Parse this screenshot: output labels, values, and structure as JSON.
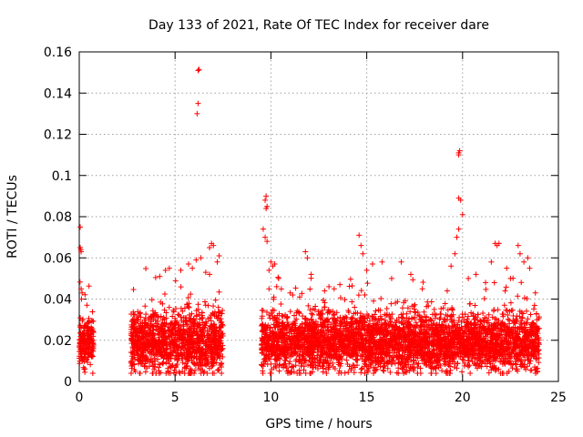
{
  "chart_data": {
    "type": "scatter",
    "title": "Day 133 of 2021, Rate Of TEC Index for receiver dare",
    "xlabel": "GPS time / hours",
    "ylabel": "ROTI / TECUs",
    "xlim": [
      0,
      25
    ],
    "ylim": [
      0,
      0.16
    ],
    "xticks": [
      "0",
      "5",
      "10",
      "15",
      "20",
      "25"
    ],
    "yticks": [
      "0",
      "0.02",
      "0.04",
      "0.06",
      "0.08",
      "0.1",
      "0.12",
      "0.14",
      "0.16"
    ],
    "marker": "+",
    "color": "#ff0000",
    "grid": true,
    "segments": [
      {
        "start": 0.0,
        "end": 0.75,
        "base": 0.018,
        "spread": 0.009
      },
      {
        "start": 2.7,
        "end": 7.5,
        "base": 0.019,
        "spread": 0.012
      },
      {
        "start": 9.5,
        "end": 24.0,
        "base": 0.019,
        "spread": 0.011
      }
    ],
    "outliers": [
      [
        0.05,
        0.075
      ],
      [
        0.05,
        0.065
      ],
      [
        0.08,
        0.064
      ],
      [
        0.1,
        0.063
      ],
      [
        0.1,
        0.045
      ],
      [
        0.15,
        0.043
      ],
      [
        0.12,
        0.04
      ],
      [
        0.4,
        0.037
      ],
      [
        4.2,
        0.051
      ],
      [
        4.5,
        0.054
      ],
      [
        4.7,
        0.055
      ],
      [
        5.3,
        0.054
      ],
      [
        5.7,
        0.057
      ],
      [
        5.9,
        0.055
      ],
      [
        6.1,
        0.059
      ],
      [
        6.35,
        0.06
      ],
      [
        6.6,
        0.053
      ],
      [
        6.8,
        0.052
      ],
      [
        6.2,
        0.151
      ],
      [
        6.25,
        0.1515
      ],
      [
        6.2,
        0.135
      ],
      [
        6.15,
        0.13
      ],
      [
        6.8,
        0.065
      ],
      [
        6.9,
        0.067
      ],
      [
        7.0,
        0.066
      ],
      [
        7.2,
        0.058
      ],
      [
        7.3,
        0.061
      ],
      [
        9.6,
        0.074
      ],
      [
        9.7,
        0.07
      ],
      [
        9.8,
        0.068
      ],
      [
        9.7,
        0.088
      ],
      [
        9.75,
        0.09
      ],
      [
        9.8,
        0.085
      ],
      [
        9.75,
        0.084
      ],
      [
        10.0,
        0.058
      ],
      [
        10.1,
        0.056
      ],
      [
        9.9,
        0.054
      ],
      [
        10.2,
        0.057
      ],
      [
        10.3,
        0.046
      ],
      [
        10.4,
        0.05
      ],
      [
        9.9,
        0.045
      ],
      [
        11.0,
        0.043
      ],
      [
        11.5,
        0.041
      ],
      [
        11.8,
        0.063
      ],
      [
        11.9,
        0.06
      ],
      [
        12.1,
        0.052
      ],
      [
        12.8,
        0.044
      ],
      [
        13.3,
        0.045
      ],
      [
        13.6,
        0.047
      ],
      [
        14.6,
        0.071
      ],
      [
        14.7,
        0.066
      ],
      [
        14.8,
        0.062
      ],
      [
        15.0,
        0.054
      ],
      [
        15.3,
        0.057
      ],
      [
        15.8,
        0.058
      ],
      [
        16.3,
        0.05
      ],
      [
        16.8,
        0.058
      ],
      [
        17.3,
        0.052
      ],
      [
        17.9,
        0.045
      ],
      [
        19.2,
        0.044
      ],
      [
        19.4,
        0.056
      ],
      [
        19.6,
        0.062
      ],
      [
        19.7,
        0.07
      ],
      [
        19.8,
        0.074
      ],
      [
        19.8,
        0.089
      ],
      [
        19.9,
        0.088
      ],
      [
        19.8,
        0.111
      ],
      [
        19.85,
        0.112
      ],
      [
        19.8,
        0.11
      ],
      [
        20.0,
        0.081
      ],
      [
        20.3,
        0.05
      ],
      [
        20.7,
        0.052
      ],
      [
        21.2,
        0.048
      ],
      [
        21.7,
        0.067
      ],
      [
        21.8,
        0.066
      ],
      [
        21.9,
        0.067
      ],
      [
        21.5,
        0.058
      ],
      [
        22.3,
        0.055
      ],
      [
        22.5,
        0.05
      ],
      [
        22.9,
        0.066
      ],
      [
        23.0,
        0.062
      ],
      [
        23.2,
        0.058
      ],
      [
        23.4,
        0.06
      ],
      [
        23.5,
        0.055
      ],
      [
        23.8,
        0.043
      ]
    ]
  }
}
